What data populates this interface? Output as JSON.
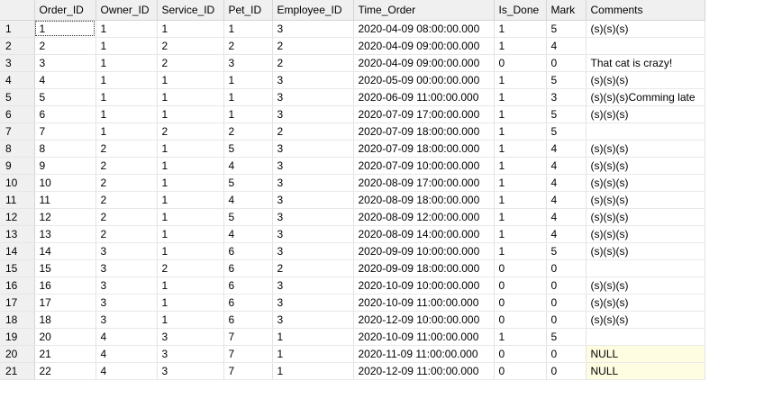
{
  "grid": {
    "columns": [
      "Order_ID",
      "Owner_ID",
      "Service_ID",
      "Pet_ID",
      "Employee_ID",
      "Time_Order",
      "Is_Done",
      "Mark",
      "Comments"
    ],
    "rows": [
      {
        "n": "1",
        "cells": [
          "1",
          "1",
          "1",
          "1",
          "3",
          "2020-04-09 08:00:00.000",
          "1",
          "5",
          "(s)(s)(s)"
        ]
      },
      {
        "n": "2",
        "cells": [
          "2",
          "1",
          "2",
          "2",
          "2",
          "2020-04-09 09:00:00.000",
          "1",
          "4",
          ""
        ]
      },
      {
        "n": "3",
        "cells": [
          "3",
          "1",
          "2",
          "3",
          "2",
          "2020-04-09 09:00:00.000",
          "0",
          "0",
          "That cat is crazy!"
        ]
      },
      {
        "n": "4",
        "cells": [
          "4",
          "1",
          "1",
          "1",
          "3",
          "2020-05-09 00:00:00.000",
          "1",
          "5",
          "(s)(s)(s)"
        ]
      },
      {
        "n": "5",
        "cells": [
          "5",
          "1",
          "1",
          "1",
          "3",
          "2020-06-09 11:00:00.000",
          "1",
          "3",
          "(s)(s)(s)Comming late"
        ]
      },
      {
        "n": "6",
        "cells": [
          "6",
          "1",
          "1",
          "1",
          "3",
          "2020-07-09 17:00:00.000",
          "1",
          "5",
          "(s)(s)(s)"
        ]
      },
      {
        "n": "7",
        "cells": [
          "7",
          "1",
          "2",
          "2",
          "2",
          "2020-07-09 18:00:00.000",
          "1",
          "5",
          ""
        ]
      },
      {
        "n": "8",
        "cells": [
          "8",
          "2",
          "1",
          "5",
          "3",
          "2020-07-09 18:00:00.000",
          "1",
          "4",
          "(s)(s)(s)"
        ]
      },
      {
        "n": "9",
        "cells": [
          "9",
          "2",
          "1",
          "4",
          "3",
          "2020-07-09 10:00:00.000",
          "1",
          "4",
          "(s)(s)(s)"
        ]
      },
      {
        "n": "10",
        "cells": [
          "10",
          "2",
          "1",
          "5",
          "3",
          "2020-08-09 17:00:00.000",
          "1",
          "4",
          "(s)(s)(s)"
        ]
      },
      {
        "n": "11",
        "cells": [
          "11",
          "2",
          "1",
          "4",
          "3",
          "2020-08-09 18:00:00.000",
          "1",
          "4",
          "(s)(s)(s)"
        ]
      },
      {
        "n": "12",
        "cells": [
          "12",
          "2",
          "1",
          "5",
          "3",
          "2020-08-09 12:00:00.000",
          "1",
          "4",
          "(s)(s)(s)"
        ]
      },
      {
        "n": "13",
        "cells": [
          "13",
          "2",
          "1",
          "4",
          "3",
          "2020-08-09 14:00:00.000",
          "1",
          "4",
          "(s)(s)(s)"
        ]
      },
      {
        "n": "14",
        "cells": [
          "14",
          "3",
          "1",
          "6",
          "3",
          "2020-09-09 10:00:00.000",
          "1",
          "5",
          "(s)(s)(s)"
        ]
      },
      {
        "n": "15",
        "cells": [
          "15",
          "3",
          "2",
          "6",
          "2",
          "2020-09-09 18:00:00.000",
          "0",
          "0",
          ""
        ]
      },
      {
        "n": "16",
        "cells": [
          "16",
          "3",
          "1",
          "6",
          "3",
          "2020-10-09 10:00:00.000",
          "0",
          "0",
          "(s)(s)(s)"
        ]
      },
      {
        "n": "17",
        "cells": [
          "17",
          "3",
          "1",
          "6",
          "3",
          "2020-10-09 11:00:00.000",
          "0",
          "0",
          "(s)(s)(s)"
        ]
      },
      {
        "n": "18",
        "cells": [
          "18",
          "3",
          "1",
          "6",
          "3",
          "2020-12-09 10:00:00.000",
          "0",
          "0",
          "(s)(s)(s)"
        ]
      },
      {
        "n": "19",
        "cells": [
          "20",
          "4",
          "3",
          "7",
          "1",
          "2020-10-09 11:00:00.000",
          "1",
          "5",
          ""
        ]
      },
      {
        "n": "20",
        "cells": [
          "21",
          "4",
          "3",
          "7",
          "1",
          "2020-11-09 11:00:00.000",
          "0",
          "0",
          "NULL"
        ]
      },
      {
        "n": "21",
        "cells": [
          "22",
          "4",
          "3",
          "7",
          "1",
          "2020-12-09 11:00:00.000",
          "0",
          "0",
          "NULL"
        ]
      }
    ]
  },
  "colors": {
    "header_bg": "#f0f0f0",
    "null_bg": "#fffde1",
    "grid_line": "#e3e3e3"
  }
}
